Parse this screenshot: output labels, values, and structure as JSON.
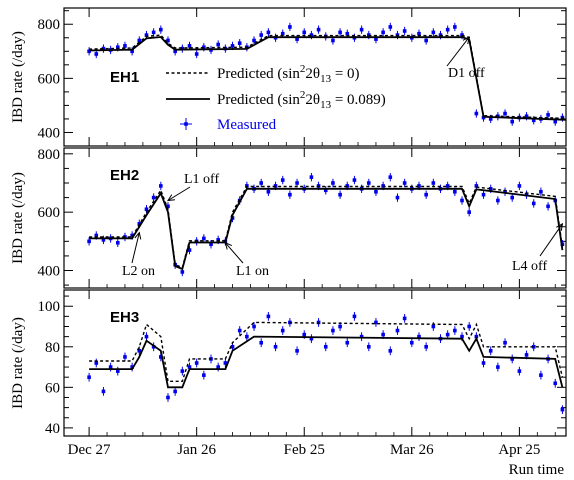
{
  "chart_data": {
    "type": "scatter",
    "x_axis": {
      "label": "Run time",
      "ticks": [
        "Dec 27",
        "Jan 26",
        "Feb 25",
        "Mar 26",
        "Apr 25"
      ],
      "day_range": [
        -7,
        133
      ]
    },
    "legend": {
      "placement": "inside EH1 panel, lower-left",
      "entries": [
        {
          "kind": "dashed",
          "label_prefix": "Predicted (sin",
          "label_sup": "2",
          "label_mid": "2θ",
          "label_sub": "13",
          "label_suffix": " = 0)"
        },
        {
          "kind": "solid",
          "label_prefix": "Predicted (sin",
          "label_sup": "2",
          "label_mid": "2θ",
          "label_sub": "13",
          "label_suffix": " = 0.089)"
        },
        {
          "kind": "marker",
          "label": "Measured",
          "color": "#0000ee"
        }
      ]
    },
    "colors": {
      "measured": "#0000ee",
      "predicted": "#000000"
    },
    "panels": [
      {
        "name": "EH1",
        "ylabel": "IBD rate (/day)",
        "ylim": [
          350,
          860
        ],
        "yticks": [
          400,
          600,
          800
        ],
        "predicted_0": [
          [
            0,
            708
          ],
          [
            12,
            712
          ],
          [
            16,
            755
          ],
          [
            20,
            760
          ],
          [
            22,
            730
          ],
          [
            24,
            712
          ],
          [
            44,
            715
          ],
          [
            50,
            758
          ],
          [
            104,
            758
          ],
          [
            106,
            752
          ],
          [
            110,
            462
          ],
          [
            133,
            452
          ]
        ],
        "predicted_089": [
          [
            0,
            703
          ],
          [
            12,
            706
          ],
          [
            16,
            748
          ],
          [
            20,
            753
          ],
          [
            22,
            724
          ],
          [
            24,
            706
          ],
          [
            44,
            709
          ],
          [
            50,
            752
          ],
          [
            104,
            752
          ],
          [
            106,
            744
          ],
          [
            110,
            458
          ],
          [
            133,
            447
          ]
        ],
        "measured": [
          [
            0,
            700
          ],
          [
            2,
            690
          ],
          [
            4,
            710
          ],
          [
            6,
            705
          ],
          [
            8,
            715
          ],
          [
            10,
            720
          ],
          [
            12,
            700
          ],
          [
            14,
            740
          ],
          [
            16,
            760
          ],
          [
            18,
            770
          ],
          [
            20,
            780
          ],
          [
            22,
            740
          ],
          [
            24,
            700
          ],
          [
            26,
            710
          ],
          [
            28,
            720
          ],
          [
            30,
            690
          ],
          [
            32,
            715
          ],
          [
            34,
            705
          ],
          [
            36,
            725
          ],
          [
            38,
            710
          ],
          [
            40,
            720
          ],
          [
            42,
            730
          ],
          [
            44,
            715
          ],
          [
            46,
            740
          ],
          [
            48,
            760
          ],
          [
            50,
            770
          ],
          [
            52,
            750
          ],
          [
            54,
            765
          ],
          [
            56,
            790
          ],
          [
            58,
            745
          ],
          [
            60,
            770
          ],
          [
            62,
            760
          ],
          [
            64,
            780
          ],
          [
            66,
            755
          ],
          [
            68,
            740
          ],
          [
            70,
            770
          ],
          [
            72,
            765
          ],
          [
            74,
            750
          ],
          [
            76,
            780
          ],
          [
            78,
            760
          ],
          [
            80,
            745
          ],
          [
            82,
            770
          ],
          [
            84,
            790
          ],
          [
            86,
            760
          ],
          [
            88,
            775
          ],
          [
            90,
            750
          ],
          [
            92,
            765
          ],
          [
            94,
            740
          ],
          [
            96,
            770
          ],
          [
            98,
            760
          ],
          [
            100,
            780
          ],
          [
            102,
            790
          ],
          [
            104,
            760
          ],
          [
            108,
            470
          ],
          [
            110,
            455
          ],
          [
            112,
            450
          ],
          [
            114,
            460
          ],
          [
            116,
            470
          ],
          [
            118,
            440
          ],
          [
            120,
            455
          ],
          [
            122,
            460
          ],
          [
            124,
            445
          ],
          [
            126,
            450
          ],
          [
            128,
            465
          ],
          [
            130,
            440
          ],
          [
            132,
            455
          ]
        ]
      },
      {
        "name": "EH2",
        "ylabel": "IBD rate (/day)",
        "ylim": [
          340,
          820
        ],
        "yticks": [
          400,
          600,
          800
        ],
        "predicted_0": [
          [
            0,
            515
          ],
          [
            12,
            515
          ],
          [
            16,
            600
          ],
          [
            20,
            675
          ],
          [
            22,
            610
          ],
          [
            24,
            420
          ],
          [
            26,
            410
          ],
          [
            28,
            502
          ],
          [
            38,
            502
          ],
          [
            40,
            600
          ],
          [
            44,
            688
          ],
          [
            104,
            688
          ],
          [
            106,
            630
          ],
          [
            108,
            686
          ],
          [
            130,
            654
          ],
          [
            132,
            480
          ]
        ],
        "predicted_089": [
          [
            0,
            510
          ],
          [
            12,
            510
          ],
          [
            16,
            590
          ],
          [
            20,
            665
          ],
          [
            22,
            600
          ],
          [
            24,
            415
          ],
          [
            26,
            405
          ],
          [
            28,
            496
          ],
          [
            38,
            496
          ],
          [
            40,
            590
          ],
          [
            44,
            680
          ],
          [
            104,
            680
          ],
          [
            106,
            620
          ],
          [
            108,
            678
          ],
          [
            130,
            645
          ],
          [
            132,
            470
          ]
        ],
        "measured": [
          [
            0,
            500
          ],
          [
            2,
            520
          ],
          [
            4,
            505
          ],
          [
            6,
            510
          ],
          [
            8,
            495
          ],
          [
            10,
            515
          ],
          [
            12,
            520
          ],
          [
            14,
            560
          ],
          [
            16,
            610
          ],
          [
            18,
            650
          ],
          [
            20,
            690
          ],
          [
            22,
            620
          ],
          [
            24,
            420
          ],
          [
            26,
            395
          ],
          [
            28,
            470
          ],
          [
            30,
            500
          ],
          [
            32,
            510
          ],
          [
            34,
            490
          ],
          [
            36,
            505
          ],
          [
            38,
            500
          ],
          [
            40,
            580
          ],
          [
            42,
            640
          ],
          [
            44,
            690
          ],
          [
            46,
            680
          ],
          [
            48,
            700
          ],
          [
            50,
            670
          ],
          [
            52,
            690
          ],
          [
            54,
            710
          ],
          [
            56,
            660
          ],
          [
            58,
            700
          ],
          [
            60,
            680
          ],
          [
            62,
            720
          ],
          [
            64,
            690
          ],
          [
            66,
            675
          ],
          [
            68,
            700
          ],
          [
            70,
            660
          ],
          [
            72,
            690
          ],
          [
            74,
            710
          ],
          [
            76,
            680
          ],
          [
            78,
            700
          ],
          [
            80,
            670
          ],
          [
            82,
            690
          ],
          [
            84,
            720
          ],
          [
            86,
            650
          ],
          [
            88,
            700
          ],
          [
            90,
            680
          ],
          [
            92,
            690
          ],
          [
            94,
            660
          ],
          [
            96,
            700
          ],
          [
            98,
            680
          ],
          [
            100,
            690
          ],
          [
            102,
            670
          ],
          [
            104,
            640
          ],
          [
            106,
            600
          ],
          [
            108,
            690
          ],
          [
            110,
            660
          ],
          [
            112,
            680
          ],
          [
            114,
            640
          ],
          [
            116,
            670
          ],
          [
            118,
            650
          ],
          [
            120,
            690
          ],
          [
            122,
            660
          ],
          [
            124,
            630
          ],
          [
            126,
            670
          ],
          [
            128,
            620
          ],
          [
            130,
            640
          ],
          [
            132,
            490
          ]
        ]
      },
      {
        "name": "EH3",
        "ylabel": "IBD rate (/day)",
        "ylim": [
          36,
          108
        ],
        "yticks": [
          40,
          60,
          80,
          100
        ],
        "predicted_0": [
          [
            0,
            73
          ],
          [
            12,
            73
          ],
          [
            14,
            80
          ],
          [
            16,
            91
          ],
          [
            20,
            85
          ],
          [
            22,
            63
          ],
          [
            26,
            63
          ],
          [
            28,
            74
          ],
          [
            38,
            74
          ],
          [
            40,
            82
          ],
          [
            46,
            92
          ],
          [
            104,
            91
          ],
          [
            106,
            84
          ],
          [
            108,
            91
          ],
          [
            110,
            80
          ],
          [
            130,
            80
          ],
          [
            132,
            65
          ]
        ],
        "predicted_089": [
          [
            0,
            69
          ],
          [
            12,
            69
          ],
          [
            14,
            75
          ],
          [
            16,
            83
          ],
          [
            20,
            78
          ],
          [
            22,
            60
          ],
          [
            26,
            60
          ],
          [
            28,
            69
          ],
          [
            38,
            69
          ],
          [
            40,
            78
          ],
          [
            46,
            85
          ],
          [
            104,
            84
          ],
          [
            106,
            78
          ],
          [
            108,
            84
          ],
          [
            110,
            75
          ],
          [
            130,
            74
          ],
          [
            132,
            60
          ]
        ],
        "measured": [
          [
            0,
            65
          ],
          [
            2,
            72
          ],
          [
            4,
            58
          ],
          [
            6,
            70
          ],
          [
            8,
            68
          ],
          [
            10,
            75
          ],
          [
            12,
            70
          ],
          [
            14,
            78
          ],
          [
            16,
            85
          ],
          [
            18,
            80
          ],
          [
            20,
            75
          ],
          [
            22,
            55
          ],
          [
            24,
            58
          ],
          [
            26,
            68
          ],
          [
            28,
            70
          ],
          [
            30,
            72
          ],
          [
            32,
            66
          ],
          [
            34,
            74
          ],
          [
            36,
            70
          ],
          [
            38,
            72
          ],
          [
            40,
            80
          ],
          [
            42,
            88
          ],
          [
            44,
            85
          ],
          [
            46,
            90
          ],
          [
            48,
            82
          ],
          [
            50,
            95
          ],
          [
            52,
            80
          ],
          [
            54,
            88
          ],
          [
            56,
            92
          ],
          [
            58,
            78
          ],
          [
            60,
            86
          ],
          [
            62,
            84
          ],
          [
            64,
            92
          ],
          [
            66,
            80
          ],
          [
            68,
            88
          ],
          [
            70,
            90
          ],
          [
            72,
            82
          ],
          [
            74,
            95
          ],
          [
            76,
            85
          ],
          [
            78,
            80
          ],
          [
            80,
            92
          ],
          [
            82,
            86
          ],
          [
            84,
            78
          ],
          [
            86,
            88
          ],
          [
            88,
            94
          ],
          [
            90,
            82
          ],
          [
            92,
            85
          ],
          [
            94,
            80
          ],
          [
            96,
            90
          ],
          [
            98,
            84
          ],
          [
            100,
            86
          ],
          [
            102,
            88
          ],
          [
            104,
            85
          ],
          [
            106,
            90
          ],
          [
            108,
            85
          ],
          [
            110,
            72
          ],
          [
            112,
            78
          ],
          [
            114,
            70
          ],
          [
            116,
            82
          ],
          [
            118,
            74
          ],
          [
            120,
            68
          ],
          [
            122,
            76
          ],
          [
            124,
            80
          ],
          [
            126,
            66
          ],
          [
            128,
            74
          ],
          [
            130,
            62
          ],
          [
            132,
            49
          ]
        ]
      }
    ],
    "annotations": [
      {
        "panel": 0,
        "text": "D1 off",
        "arrow_to": [
          106,
          752
        ]
      },
      {
        "panel": 1,
        "text": "L1 off",
        "arrow_to": [
          22,
          640
        ]
      },
      {
        "panel": 1,
        "text": "L2 on",
        "arrow_to": [
          14,
          530
        ]
      },
      {
        "panel": 1,
        "text": "L1 on",
        "arrow_to": [
          38,
          495
        ]
      },
      {
        "panel": 1,
        "text": "L4 off",
        "arrow_to": [
          132,
          560
        ]
      }
    ]
  }
}
